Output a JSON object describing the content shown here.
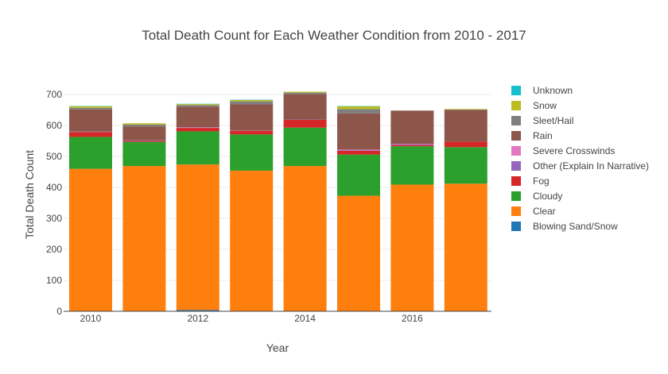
{
  "chart_data": {
    "type": "bar",
    "stacked": true,
    "title": "Total Death Count for Each Weather Condition from 2010 - 2017",
    "xlabel": "Year",
    "ylabel": "Total Death Count",
    "ylim": [
      0,
      700
    ],
    "y_ticks": [
      0,
      100,
      200,
      300,
      400,
      500,
      600,
      700
    ],
    "x_ticks": [
      2010,
      2012,
      2014,
      2016
    ],
    "grid": true,
    "legend_position": "right",
    "categories": [
      2010,
      2011,
      2012,
      2013,
      2014,
      2015,
      2016,
      2017
    ],
    "series": [
      {
        "name": "Blowing Sand/Snow",
        "color": "#1f77b4",
        "values": [
          0,
          0,
          4,
          0,
          0,
          0,
          0,
          0
        ]
      },
      {
        "name": "Clear",
        "color": "#ff7f0e",
        "values": [
          460,
          469,
          470,
          454,
          469,
          373,
          409,
          412
        ]
      },
      {
        "name": "Cloudy",
        "color": "#2ca02c",
        "values": [
          103,
          78,
          107,
          117,
          124,
          133,
          124,
          118
        ]
      },
      {
        "name": "Fog",
        "color": "#d62728",
        "values": [
          16,
          3,
          11,
          12,
          25,
          12,
          4,
          18
        ]
      },
      {
        "name": "Other (Explain In Narrative)",
        "color": "#9467bd",
        "values": [
          1,
          2,
          1,
          1,
          1,
          2,
          3,
          0
        ]
      },
      {
        "name": "Severe Crosswinds",
        "color": "#e377c2",
        "values": [
          0,
          0,
          1,
          0,
          0,
          2,
          1,
          0
        ]
      },
      {
        "name": "Rain",
        "color": "#8c564b",
        "values": [
          72,
          45,
          67,
          84,
          82,
          117,
          107,
          102
        ]
      },
      {
        "name": "Sleet/Hail",
        "color": "#7f7f7f",
        "values": [
          5,
          6,
          5,
          10,
          5,
          14,
          0,
          1
        ]
      },
      {
        "name": "Snow",
        "color": "#bcbd22",
        "values": [
          5,
          4,
          3,
          4,
          3,
          9,
          0,
          2
        ]
      },
      {
        "name": "Unknown",
        "color": "#17becf",
        "values": [
          1,
          0,
          1,
          1,
          0,
          1,
          0,
          0
        ]
      }
    ]
  }
}
